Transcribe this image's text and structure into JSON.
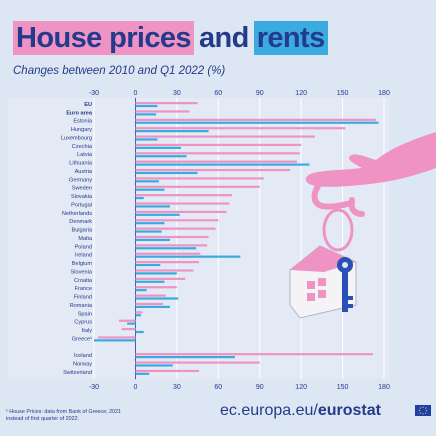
{
  "header": {
    "title_part1": "House prices",
    "title_part2": "and",
    "title_part3": "rents",
    "subtitle": "Changes between 2010 and Q1 2022 (%)"
  },
  "footer": {
    "footnote_line1": "¹ House Prices: data from Bank of Greece; 2021",
    "footnote_line2": "instead of first quarter of 2022.",
    "brand_prefix": "ec.europa.eu/",
    "brand_name": "eurostat"
  },
  "colors": {
    "house_prices": "#ee93c3",
    "rents": "#3aaae0",
    "background": "#dde6f3",
    "text": "#243a8a"
  },
  "chart_data": {
    "type": "bar",
    "orientation": "horizontal",
    "xlim": [
      -30,
      180
    ],
    "xticks": [
      -30,
      0,
      30,
      60,
      90,
      120,
      150,
      180
    ],
    "grid": true,
    "legend": "title colours: pink = house prices, blue = rents",
    "categories": [
      "EU",
      "Euro area",
      "Estonia",
      "Hungary",
      "Luxembourg",
      "Czechia",
      "Latvia",
      "Lithuania",
      "Austria",
      "Germany",
      "Sweden",
      "Slovakia",
      "Portugal",
      "Netherlands",
      "Denmark",
      "Bulgaria",
      "Malta",
      "Poland",
      "Ireland",
      "Belgium",
      "Slovenia",
      "Croatia",
      "France",
      "Finland",
      "Romania",
      "Spain",
      "Cyprus",
      "Italy",
      "Greece¹",
      "",
      "Iceland",
      "Norway",
      "Switzerland"
    ],
    "bold_categories": [
      "EU",
      "Euro area"
    ],
    "series": [
      {
        "key": "house_prices",
        "values": [
          45,
          39,
          174,
          152,
          130,
          120,
          119,
          117,
          112,
          93,
          90,
          70,
          68,
          66,
          60,
          58,
          53,
          52,
          47,
          46,
          42,
          36,
          30,
          22,
          20,
          5,
          -12,
          -10,
          -27,
          null,
          172,
          90,
          46
        ]
      },
      {
        "key": "rents",
        "values": [
          16,
          15,
          176,
          53,
          16,
          33,
          37,
          126,
          45,
          17,
          21,
          6,
          25,
          32,
          21,
          19,
          25,
          44,
          76,
          18,
          30,
          21,
          8,
          31,
          25,
          4,
          -6,
          6,
          -30,
          null,
          72,
          27,
          10
        ]
      }
    ]
  }
}
